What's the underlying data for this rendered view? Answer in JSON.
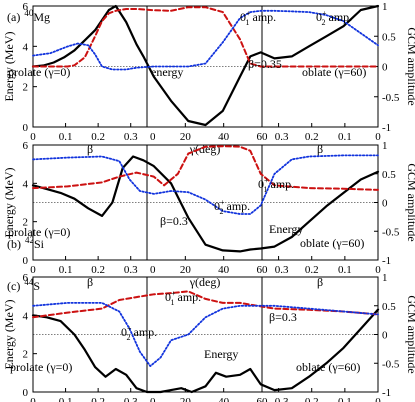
{
  "colors": {
    "energy": "#000000",
    "amp0": "#cc1111",
    "amp2": "#1133dd",
    "frame": "#000000"
  },
  "chart_data": [
    {
      "type": "line",
      "panel_label": "(a)",
      "nucleus": "Mg",
      "mass": "40",
      "ylabel_left": "Energy (MeV)",
      "ylabel_right": "GCM amplitude",
      "xlabel_segments": [
        "β",
        "γ(deg)",
        "β"
      ],
      "ylim_left": [
        0,
        6
      ],
      "ylim_right": [
        -1,
        1
      ],
      "yticks_left": [
        "0",
        "2",
        "4",
        "6"
      ],
      "yticks_right": [
        "-1",
        "-0.5",
        "0",
        "0.5",
        "1"
      ],
      "xticks_prolate": [
        "0",
        "0.1",
        "0.2",
        "0.3"
      ],
      "xticks_gamma": [
        "0",
        "20",
        "40",
        "60"
      ],
      "xticks_oblate": [
        "0.3",
        "0.2",
        "0.1",
        "0"
      ],
      "dashed_reference_energy": 3.0,
      "annotations": {
        "amp0": "0",
        "amp0_sup": "+",
        "amp0_sub": "1",
        "amp0_tail": " amp.",
        "amp2": "0",
        "amp2_sup": "+",
        "amp2_sub": "2",
        "amp2_tail": " amp.",
        "energy": "energy",
        "beta": "β=0.35",
        "prolate": "prolate (γ=0)",
        "oblate": "oblate (γ=60)"
      },
      "series": [
        {
          "name": "Energy",
          "x": [
            0,
            0.03,
            0.06,
            0.09,
            0.12,
            0.15,
            0.18,
            0.2,
            0.22,
            0.24,
            0.27,
            0.3,
            0.32,
            0.35,
            0.4,
            0.45,
            0.5,
            0.55,
            0.6,
            0.63,
            0.66,
            0.7,
            0.75,
            0.8,
            0.85,
            0.9,
            0.95,
            1.0
          ],
          "y": [
            3.0,
            3.05,
            3.2,
            3.45,
            3.8,
            4.3,
            4.8,
            5.3,
            5.8,
            6.0,
            5.2,
            4.1,
            3.5,
            2.5,
            1.3,
            0.3,
            0.1,
            0.8,
            2.5,
            3.5,
            3.7,
            3.4,
            3.5,
            4.0,
            4.5,
            5.0,
            5.8,
            6.0
          ]
        },
        {
          "name": "0₁⁺ amp.",
          "x": [
            0,
            0.1,
            0.12,
            0.15,
            0.18,
            0.2,
            0.22,
            0.24,
            0.27,
            0.3,
            0.35,
            0.4,
            0.45,
            0.5,
            0.55,
            0.6,
            0.63,
            0.66,
            0.7,
            0.8,
            0.9,
            1.0
          ],
          "y": [
            0,
            0,
            0.02,
            0.15,
            0.5,
            0.75,
            0.88,
            0.92,
            0.95,
            0.95,
            0.93,
            0.92,
            0.98,
            0.98,
            0.9,
            0.45,
            0.05,
            0.0,
            0,
            0,
            0,
            0
          ]
        },
        {
          "name": "0₂⁺ amp.",
          "x": [
            0,
            0.05,
            0.1,
            0.13,
            0.16,
            0.18,
            0.2,
            0.23,
            0.27,
            0.3,
            0.35,
            0.4,
            0.45,
            0.5,
            0.55,
            0.6,
            0.63,
            0.66,
            0.7,
            0.75,
            0.8,
            0.85,
            0.9,
            0.95,
            1.0
          ],
          "y": [
            0.18,
            0.22,
            0.33,
            0.38,
            0.35,
            0.2,
            0.0,
            -0.05,
            -0.05,
            -0.02,
            0.0,
            0.0,
            0.0,
            0.05,
            0.4,
            0.8,
            0.9,
            0.92,
            0.92,
            0.91,
            0.9,
            0.85,
            0.75,
            0.55,
            0.35
          ]
        }
      ]
    },
    {
      "type": "line",
      "panel_label": "(b)",
      "nucleus": "Si",
      "mass": "42",
      "ylabel_left": "Energy (MeV)",
      "ylabel_right": "GCM amplitude",
      "xlabel_segments": [
        "β",
        "γ(deg)",
        "β"
      ],
      "ylim_left": [
        0,
        6
      ],
      "ylim_right": [
        -1,
        1
      ],
      "yticks_left": [
        "0",
        "2",
        "4",
        "6"
      ],
      "yticks_right": [
        "-1",
        "-0.5",
        "0",
        "0.5",
        "1"
      ],
      "xticks_prolate": [
        "0",
        "0.1",
        "0.2",
        "0.3"
      ],
      "xticks_gamma": [
        "0",
        "20",
        "40",
        "60"
      ],
      "xticks_oblate": [
        "0.3",
        "0.2",
        "0.1",
        "0"
      ],
      "dashed_reference_energy": 3.0,
      "annotations": {
        "amp0": "0",
        "amp0_sup": "+",
        "amp0_sub": "1",
        "amp0_tail": " amp.",
        "amp2": "0",
        "amp2_sup": "+",
        "amp2_sub": "2",
        "amp2_tail": " amp.",
        "energy": "Energy",
        "beta": "β=0.3",
        "prolate": "prolate (γ=0)",
        "oblate": "oblate (γ=60)"
      },
      "series": [
        {
          "name": "Energy",
          "x": [
            0,
            0.04,
            0.08,
            0.12,
            0.16,
            0.2,
            0.23,
            0.26,
            0.29,
            0.32,
            0.35,
            0.4,
            0.45,
            0.5,
            0.55,
            0.6,
            0.63,
            0.66,
            0.7,
            0.75,
            0.8,
            0.85,
            0.9,
            0.95,
            1.0
          ],
          "y": [
            3.9,
            3.7,
            3.5,
            3.2,
            2.7,
            2.3,
            3.0,
            4.8,
            5.4,
            5.2,
            4.9,
            4.0,
            2.2,
            0.8,
            0.5,
            0.45,
            0.55,
            0.6,
            0.7,
            1.2,
            2.0,
            2.8,
            3.5,
            4.2,
            4.6
          ]
        },
        {
          "name": "0₁⁺ amp.",
          "x": [
            0,
            0.1,
            0.2,
            0.25,
            0.3,
            0.35,
            0.38,
            0.42,
            0.45,
            0.5,
            0.55,
            0.6,
            0.63,
            0.66,
            0.7,
            0.8,
            0.9,
            1.0
          ],
          "y": [
            0.25,
            0.28,
            0.35,
            0.45,
            0.52,
            0.45,
            0.3,
            0.5,
            0.85,
            0.97,
            0.98,
            0.97,
            0.9,
            0.5,
            0.3,
            0.25,
            0.24,
            0.22
          ]
        },
        {
          "name": "0₂⁺ amp.",
          "x": [
            0,
            0.1,
            0.2,
            0.25,
            0.28,
            0.31,
            0.35,
            0.4,
            0.45,
            0.5,
            0.55,
            0.6,
            0.63,
            0.66,
            0.7,
            0.75,
            0.8,
            0.9,
            1.0
          ],
          "y": [
            0.75,
            0.78,
            0.8,
            0.72,
            0.4,
            0.2,
            0.15,
            0.2,
            0.18,
            0.05,
            -0.15,
            -0.2,
            -0.2,
            -0.05,
            0.5,
            0.75,
            0.8,
            0.82,
            0.82
          ]
        }
      ]
    },
    {
      "type": "line",
      "panel_label": "(c)",
      "nucleus": "S",
      "mass": "44",
      "ylabel_left": "Energy (MeV)",
      "ylabel_right": "GCM amplitude",
      "xlabel_segments": [
        "β",
        "γ(deg)",
        "β"
      ],
      "ylim_left": [
        0,
        6
      ],
      "ylim_right": [
        -1,
        1
      ],
      "yticks_left": [
        "0",
        "2",
        "4",
        "6"
      ],
      "yticks_right": [
        "-1",
        "-0.5",
        "0",
        "0.5",
        "1"
      ],
      "xticks_prolate": [
        "0",
        "0.1",
        "0.2",
        "0.3"
      ],
      "xticks_gamma": [
        "0",
        "20",
        "40",
        "60"
      ],
      "xticks_oblate": [
        "0.3",
        "0.2",
        "0.1",
        "0"
      ],
      "dashed_reference_energy": 3.0,
      "annotations": {
        "amp0": "0",
        "amp0_sup": "+",
        "amp0_sub": "1",
        "amp0_tail": " amp.",
        "amp2": "0",
        "amp2_sup": "+",
        "amp2_sub": "2",
        "amp2_tail": " amp.",
        "energy": "Energy",
        "beta": "β=0.3",
        "prolate": "prolate (γ=0)",
        "oblate": "oblate (γ=60)"
      },
      "series": [
        {
          "name": "Energy",
          "x": [
            0,
            0.04,
            0.08,
            0.12,
            0.15,
            0.18,
            0.21,
            0.24,
            0.27,
            0.3,
            0.33,
            0.37,
            0.4,
            0.43,
            0.46,
            0.5,
            0.53,
            0.56,
            0.6,
            0.63,
            0.66,
            0.7,
            0.75,
            0.8,
            0.85,
            0.9,
            0.95,
            1.0
          ],
          "y": [
            4.0,
            3.9,
            3.7,
            3.0,
            2.2,
            1.3,
            0.8,
            1.2,
            0.9,
            0.2,
            0.0,
            0.0,
            0.1,
            0.2,
            0.0,
            0.3,
            1.0,
            0.8,
            0.9,
            1.2,
            0.4,
            0.1,
            0.2,
            0.8,
            1.5,
            2.3,
            3.3,
            4.3
          ]
        },
        {
          "name": "0₁⁺ amp.",
          "x": [
            0,
            0.1,
            0.2,
            0.25,
            0.3,
            0.35,
            0.4,
            0.45,
            0.5,
            0.55,
            0.6,
            0.65,
            0.7,
            0.8,
            0.9,
            1.0
          ],
          "y": [
            0.3,
            0.38,
            0.45,
            0.6,
            0.65,
            0.7,
            0.72,
            0.75,
            0.62,
            0.55,
            0.55,
            0.5,
            0.45,
            0.43,
            0.4,
            0.35
          ]
        },
        {
          "name": "0₂⁺ amp.",
          "x": [
            0,
            0.1,
            0.2,
            0.25,
            0.28,
            0.31,
            0.34,
            0.37,
            0.4,
            0.45,
            0.5,
            0.55,
            0.6,
            0.65,
            0.7,
            0.8,
            0.9,
            1.0
          ],
          "y": [
            0.5,
            0.55,
            0.55,
            0.4,
            0.1,
            -0.3,
            -0.55,
            -0.4,
            -0.1,
            0.0,
            0.3,
            0.45,
            0.5,
            0.5,
            0.5,
            0.45,
            0.4,
            0.35
          ]
        }
      ]
    }
  ]
}
